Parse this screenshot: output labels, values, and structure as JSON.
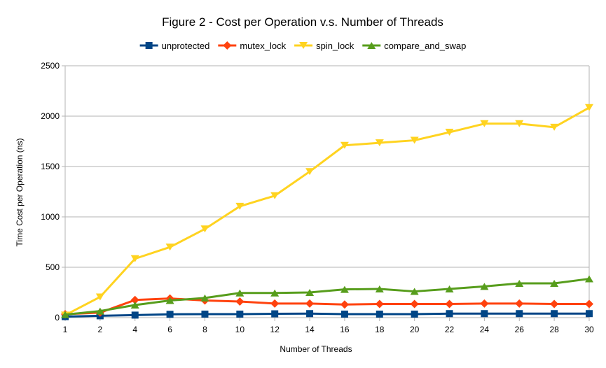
{
  "chart_data": {
    "type": "line",
    "title": "Figure 2 - Cost per Operation v.s. Number of Threads",
    "xlabel": "Number of Threads",
    "ylabel": "Time Cost per Operation (ns)",
    "categories": [
      "1",
      "2",
      "4",
      "6",
      "8",
      "10",
      "12",
      "14",
      "16",
      "18",
      "20",
      "22",
      "24",
      "26",
      "28",
      "30"
    ],
    "ylim": [
      0,
      2500
    ],
    "yticks": [
      0,
      500,
      1000,
      1500,
      2000,
      2500
    ],
    "grid": true,
    "legend": "top",
    "series": [
      {
        "name": "unprotected",
        "color": "#004586",
        "marker": "square",
        "values": [
          10,
          18,
          25,
          33,
          35,
          35,
          38,
          40,
          35,
          35,
          35,
          40,
          40,
          40,
          40,
          40
        ]
      },
      {
        "name": "mutex_lock",
        "color": "#ff420e",
        "marker": "diamond",
        "values": [
          35,
          50,
          175,
          190,
          170,
          160,
          140,
          140,
          130,
          135,
          135,
          135,
          140,
          140,
          135,
          135
        ]
      },
      {
        "name": "spin_lock",
        "color": "#ffd320",
        "marker": "triangle-down",
        "values": [
          25,
          205,
          585,
          700,
          880,
          1105,
          1210,
          1450,
          1710,
          1735,
          1760,
          1840,
          1925,
          1925,
          1890,
          2085
        ]
      },
      {
        "name": "compare_and_swap",
        "color": "#579d1c",
        "marker": "triangle-up",
        "values": [
          30,
          65,
          125,
          170,
          195,
          245,
          245,
          250,
          280,
          285,
          260,
          285,
          310,
          340,
          340,
          385
        ]
      }
    ]
  }
}
